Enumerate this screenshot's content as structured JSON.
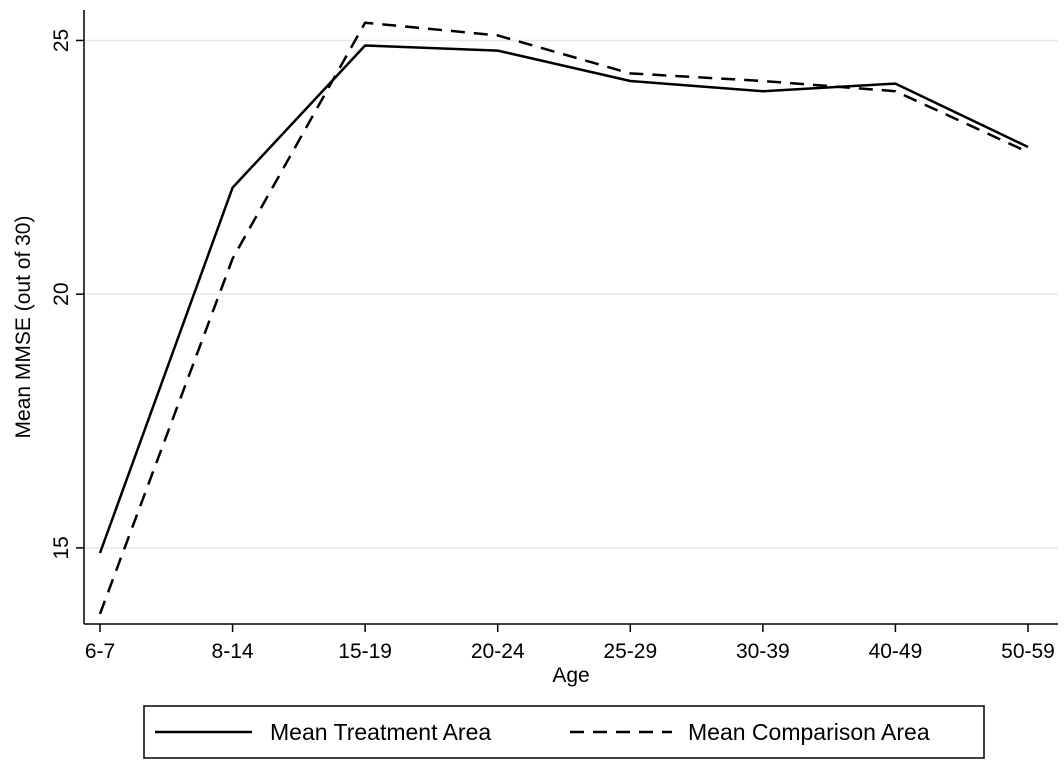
{
  "chart_data": {
    "type": "line",
    "title": "",
    "xlabel": "Age",
    "ylabel": "Mean MMSE (out of 30)",
    "categories": [
      "6-7",
      "8-14",
      "15-19",
      "20-24",
      "25-29",
      "30-39",
      "40-49",
      "50-59"
    ],
    "ylim": [
      13.5,
      25.6
    ],
    "yticks": [
      15,
      20,
      25
    ],
    "grid": true,
    "legend_position": "bottom",
    "series": [
      {
        "name": "Mean Treatment Area",
        "style": "solid",
        "color": "#000000",
        "values": [
          14.9,
          22.1,
          24.9,
          24.8,
          24.2,
          24.0,
          24.15,
          22.9
        ]
      },
      {
        "name": "Mean Comparison Area",
        "style": "dashed",
        "color": "#000000",
        "values": [
          13.7,
          20.7,
          25.35,
          25.1,
          24.35,
          24.2,
          24.0,
          22.8
        ]
      }
    ]
  },
  "colors": {
    "grid": "#e1e8ec",
    "axis": "#000000",
    "background": "#ffffff"
  }
}
